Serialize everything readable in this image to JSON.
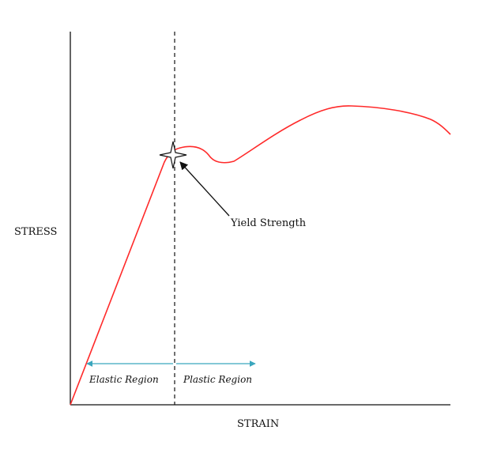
{
  "labels": {
    "y_axis": "STRESS",
    "x_axis": "STRAIN",
    "yield_annotation": "Yield Strength",
    "elastic_region": "Elastic Region",
    "plastic_region": "Plastic Region"
  },
  "colors": {
    "curve": "#ff2a2a",
    "axis": "#111111",
    "region_arrow": "#3aa6bd",
    "dashed_line": "#111111"
  },
  "icons": {
    "yield_marker": "four-point-star-icon"
  }
}
